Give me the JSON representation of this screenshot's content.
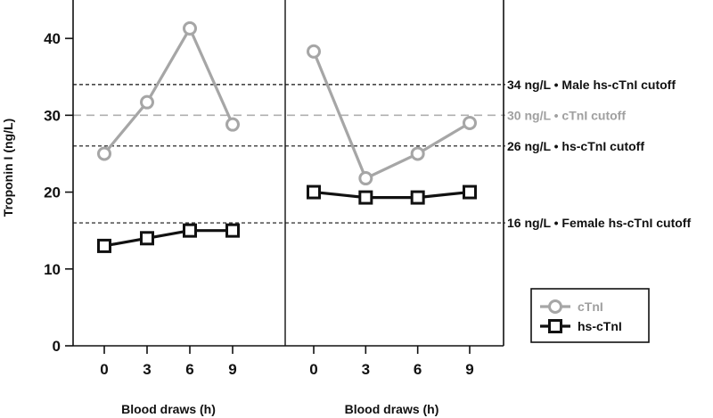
{
  "chart_data": {
    "type": "line",
    "ylabel": "Troponin I (ng/L)",
    "ylim": [
      0,
      45
    ],
    "yticks": [
      0,
      10,
      20,
      30,
      40
    ],
    "colors": {
      "ctni": "#a6a6a6",
      "hsctni": "#111111",
      "gray_line": "#b0b0b0"
    },
    "panels": [
      {
        "xlabel": "Blood draws (h)",
        "x": [
          0,
          3,
          6,
          9
        ],
        "series": [
          {
            "name": "cTnI",
            "key": "ctni",
            "marker": "circle",
            "values": [
              25,
              31.7,
              41.3,
              28.8
            ]
          },
          {
            "name": "hs-cTnI",
            "key": "hsctni",
            "marker": "square",
            "values": [
              13,
              14,
              15,
              15
            ]
          }
        ]
      },
      {
        "xlabel": "Blood draws (h)",
        "x": [
          0,
          3,
          6,
          9
        ],
        "series": [
          {
            "name": "cTnI",
            "key": "ctni",
            "marker": "circle",
            "values": [
              38.3,
              21.8,
              25,
              29
            ]
          },
          {
            "name": "hs-cTnI",
            "key": "hsctni",
            "marker": "square",
            "values": [
              20,
              19.3,
              19.3,
              20
            ]
          }
        ]
      }
    ],
    "reference_lines": [
      {
        "value": 34,
        "label": "34 ng/L • Male hs-cTnI cutoff",
        "style": "black"
      },
      {
        "value": 30,
        "label": "30 ng/L • cTnI cutoff",
        "style": "gray"
      },
      {
        "value": 26,
        "label": "26 ng/L • hs-cTnI cutoff",
        "style": "black"
      },
      {
        "value": 16,
        "label": "16 ng/L • Female hs-cTnI cutoff",
        "style": "black"
      }
    ],
    "legend": [
      {
        "label": "cTnI",
        "key": "ctni",
        "marker": "circle"
      },
      {
        "label": "hs-cTnI",
        "key": "hsctni",
        "marker": "square"
      }
    ]
  }
}
